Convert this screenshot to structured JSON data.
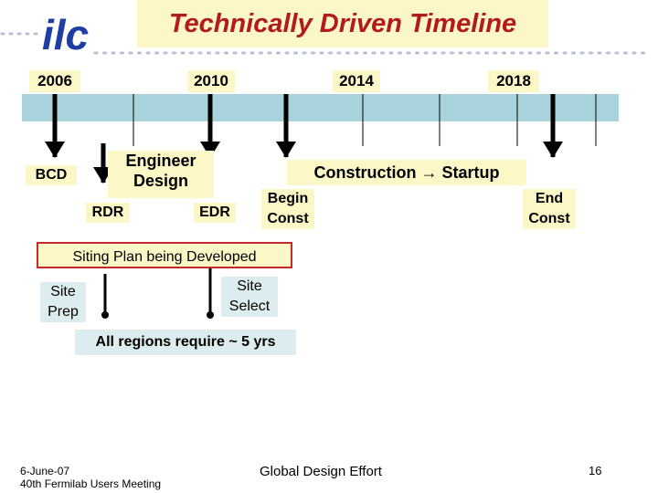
{
  "title": "Technically Driven Timeline",
  "logo_text": "ilc",
  "years": [
    "2006",
    "2010",
    "2014",
    "2018"
  ],
  "milestones": {
    "bcd": "BCD",
    "engineer_design": [
      "Engineer",
      "Design"
    ],
    "rdr": "RDR",
    "edr": "EDR",
    "construction_startup": "Construction → Startup",
    "begin_const": [
      "Begin",
      "Const"
    ],
    "end_const": [
      "End",
      "Const"
    ]
  },
  "siting": {
    "plan": "Siting Plan being Developed",
    "site_prep": [
      "Site",
      "Prep"
    ],
    "site_select": [
      "Site",
      "Select"
    ],
    "regions_note": "All regions require ~ 5 yrs"
  },
  "footer": {
    "date": "6-June-07",
    "meeting": "40th Fermilab Users Meeting",
    "center": "Global Design Effort",
    "page": "16"
  },
  "colors": {
    "title": "#b31b1b",
    "logo": "#1e3ea3",
    "band": "#a9d3dc",
    "box_yellow": "#fbf7c6",
    "box_cyan": "#ddecef",
    "siting_border": "#c62828",
    "dots": "#b7bfd0"
  }
}
